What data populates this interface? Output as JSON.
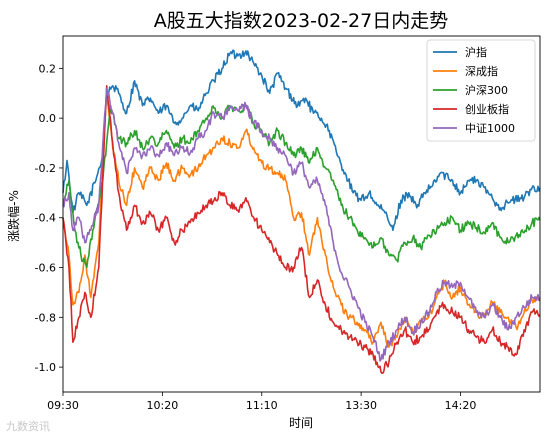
{
  "chart_data": {
    "type": "line",
    "title": "A股五大指数2023-02-27日内走势",
    "xlabel": "时间",
    "ylabel": "涨跌幅-%",
    "x_ticks": [
      "09:30",
      "10:20",
      "11:10",
      "13:30",
      "14:20"
    ],
    "x_tick_minutes": [
      0,
      50,
      100,
      150,
      200
    ],
    "x_range_minutes": [
      0,
      240
    ],
    "yticks": [
      0.2,
      0.0,
      -0.2,
      -0.4,
      -0.6,
      -0.8,
      -1.0
    ],
    "ylim": [
      -1.1,
      0.33
    ],
    "grid": false,
    "legend_position": "top-right",
    "series": [
      {
        "name": "沪指",
        "color": "#1f77b4",
        "anchors": [
          [
            0,
            -0.3
          ],
          [
            2,
            -0.17
          ],
          [
            5,
            -0.38
          ],
          [
            8,
            -0.3
          ],
          [
            12,
            -0.35
          ],
          [
            16,
            -0.26
          ],
          [
            20,
            -0.15
          ],
          [
            22,
            0.1
          ],
          [
            25,
            0.13
          ],
          [
            28,
            0.1
          ],
          [
            32,
            0.02
          ],
          [
            36,
            0.15
          ],
          [
            40,
            0.05
          ],
          [
            44,
            0.08
          ],
          [
            48,
            0.02
          ],
          [
            52,
            0.05
          ],
          [
            56,
            -0.02
          ],
          [
            60,
            0.0
          ],
          [
            64,
            0.05
          ],
          [
            68,
            0.03
          ],
          [
            72,
            0.1
          ],
          [
            76,
            0.15
          ],
          [
            80,
            0.2
          ],
          [
            84,
            0.26
          ],
          [
            88,
            0.25
          ],
          [
            92,
            0.27
          ],
          [
            96,
            0.22
          ],
          [
            100,
            0.17
          ],
          [
            104,
            0.1
          ],
          [
            108,
            0.18
          ],
          [
            112,
            0.12
          ],
          [
            118,
            0.05
          ],
          [
            122,
            0.08
          ],
          [
            126,
            0.02
          ],
          [
            130,
            0.0
          ],
          [
            134,
            -0.05
          ],
          [
            138,
            -0.15
          ],
          [
            142,
            -0.22
          ],
          [
            146,
            -0.3
          ],
          [
            150,
            -0.33
          ],
          [
            154,
            -0.3
          ],
          [
            158,
            -0.35
          ],
          [
            162,
            -0.38
          ],
          [
            166,
            -0.45
          ],
          [
            170,
            -0.33
          ],
          [
            174,
            -0.3
          ],
          [
            178,
            -0.36
          ],
          [
            182,
            -0.3
          ],
          [
            186,
            -0.27
          ],
          [
            190,
            -0.22
          ],
          [
            196,
            -0.25
          ],
          [
            200,
            -0.3
          ],
          [
            204,
            -0.25
          ],
          [
            208,
            -0.25
          ],
          [
            214,
            -0.3
          ],
          [
            220,
            -0.36
          ],
          [
            226,
            -0.33
          ],
          [
            232,
            -0.32
          ],
          [
            236,
            -0.28
          ],
          [
            240,
            -0.28
          ]
        ]
      },
      {
        "name": "深成指",
        "color": "#ff7f0e",
        "anchors": [
          [
            0,
            -0.4
          ],
          [
            3,
            -0.55
          ],
          [
            5,
            -0.75
          ],
          [
            8,
            -0.7
          ],
          [
            11,
            -0.55
          ],
          [
            14,
            -0.72
          ],
          [
            18,
            -0.5
          ],
          [
            22,
            0.1
          ],
          [
            25,
            -0.12
          ],
          [
            28,
            -0.25
          ],
          [
            32,
            -0.35
          ],
          [
            36,
            -0.2
          ],
          [
            40,
            -0.28
          ],
          [
            44,
            -0.2
          ],
          [
            48,
            -0.25
          ],
          [
            52,
            -0.18
          ],
          [
            56,
            -0.25
          ],
          [
            60,
            -0.2
          ],
          [
            64,
            -0.23
          ],
          [
            68,
            -0.2
          ],
          [
            72,
            -0.15
          ],
          [
            76,
            -0.12
          ],
          [
            80,
            -0.08
          ],
          [
            84,
            -0.1
          ],
          [
            88,
            -0.12
          ],
          [
            92,
            -0.05
          ],
          [
            96,
            -0.12
          ],
          [
            100,
            -0.18
          ],
          [
            104,
            -0.2
          ],
          [
            108,
            -0.22
          ],
          [
            112,
            -0.25
          ],
          [
            116,
            -0.4
          ],
          [
            120,
            -0.38
          ],
          [
            124,
            -0.55
          ],
          [
            128,
            -0.4
          ],
          [
            132,
            -0.55
          ],
          [
            136,
            -0.68
          ],
          [
            140,
            -0.75
          ],
          [
            144,
            -0.8
          ],
          [
            148,
            -0.82
          ],
          [
            152,
            -0.85
          ],
          [
            156,
            -0.9
          ],
          [
            160,
            -0.82
          ],
          [
            164,
            -0.92
          ],
          [
            168,
            -0.88
          ],
          [
            172,
            -0.8
          ],
          [
            176,
            -0.86
          ],
          [
            180,
            -0.82
          ],
          [
            184,
            -0.8
          ],
          [
            188,
            -0.72
          ],
          [
            192,
            -0.66
          ],
          [
            196,
            -0.72
          ],
          [
            200,
            -0.68
          ],
          [
            204,
            -0.75
          ],
          [
            208,
            -0.78
          ],
          [
            212,
            -0.8
          ],
          [
            216,
            -0.74
          ],
          [
            220,
            -0.78
          ],
          [
            224,
            -0.8
          ],
          [
            228,
            -0.84
          ],
          [
            232,
            -0.78
          ],
          [
            236,
            -0.73
          ],
          [
            240,
            -0.73
          ]
        ]
      },
      {
        "name": "沪深300",
        "color": "#2ca02c",
        "anchors": [
          [
            0,
            -0.35
          ],
          [
            3,
            -0.25
          ],
          [
            6,
            -0.45
          ],
          [
            9,
            -0.55
          ],
          [
            12,
            -0.6
          ],
          [
            15,
            -0.45
          ],
          [
            20,
            -0.25
          ],
          [
            24,
            0.05
          ],
          [
            28,
            -0.08
          ],
          [
            32,
            -0.1
          ],
          [
            36,
            -0.05
          ],
          [
            40,
            -0.12
          ],
          [
            44,
            -0.08
          ],
          [
            48,
            -0.1
          ],
          [
            52,
            -0.05
          ],
          [
            56,
            -0.12
          ],
          [
            60,
            -0.08
          ],
          [
            64,
            -0.1
          ],
          [
            68,
            -0.05
          ],
          [
            72,
            0.0
          ],
          [
            76,
            0.04
          ],
          [
            80,
            0.0
          ],
          [
            84,
            0.05
          ],
          [
            88,
            0.03
          ],
          [
            92,
            0.05
          ],
          [
            96,
            -0.02
          ],
          [
            100,
            -0.05
          ],
          [
            104,
            -0.1
          ],
          [
            108,
            -0.05
          ],
          [
            112,
            -0.1
          ],
          [
            116,
            -0.15
          ],
          [
            120,
            -0.12
          ],
          [
            124,
            -0.18
          ],
          [
            128,
            -0.12
          ],
          [
            132,
            -0.2
          ],
          [
            136,
            -0.25
          ],
          [
            140,
            -0.35
          ],
          [
            144,
            -0.4
          ],
          [
            148,
            -0.45
          ],
          [
            152,
            -0.48
          ],
          [
            156,
            -0.52
          ],
          [
            160,
            -0.48
          ],
          [
            164,
            -0.55
          ],
          [
            168,
            -0.57
          ],
          [
            172,
            -0.5
          ],
          [
            176,
            -0.48
          ],
          [
            180,
            -0.52
          ],
          [
            184,
            -0.47
          ],
          [
            188,
            -0.45
          ],
          [
            192,
            -0.42
          ],
          [
            196,
            -0.4
          ],
          [
            200,
            -0.45
          ],
          [
            204,
            -0.42
          ],
          [
            208,
            -0.44
          ],
          [
            212,
            -0.46
          ],
          [
            216,
            -0.42
          ],
          [
            220,
            -0.48
          ],
          [
            224,
            -0.5
          ],
          [
            228,
            -0.47
          ],
          [
            232,
            -0.46
          ],
          [
            236,
            -0.42
          ],
          [
            240,
            -0.41
          ]
        ]
      },
      {
        "name": "创业板指",
        "color": "#d62728",
        "anchors": [
          [
            0,
            -0.4
          ],
          [
            3,
            -0.6
          ],
          [
            5,
            -0.9
          ],
          [
            8,
            -0.8
          ],
          [
            11,
            -0.7
          ],
          [
            14,
            -0.8
          ],
          [
            18,
            -0.6
          ],
          [
            22,
            0.13
          ],
          [
            25,
            -0.1
          ],
          [
            28,
            -0.3
          ],
          [
            32,
            -0.45
          ],
          [
            36,
            -0.35
          ],
          [
            40,
            -0.42
          ],
          [
            44,
            -0.38
          ],
          [
            48,
            -0.45
          ],
          [
            52,
            -0.4
          ],
          [
            56,
            -0.5
          ],
          [
            60,
            -0.45
          ],
          [
            64,
            -0.42
          ],
          [
            68,
            -0.38
          ],
          [
            72,
            -0.35
          ],
          [
            76,
            -0.33
          ],
          [
            80,
            -0.3
          ],
          [
            84,
            -0.35
          ],
          [
            88,
            -0.37
          ],
          [
            92,
            -0.32
          ],
          [
            96,
            -0.4
          ],
          [
            100,
            -0.45
          ],
          [
            104,
            -0.5
          ],
          [
            108,
            -0.55
          ],
          [
            112,
            -0.6
          ],
          [
            116,
            -0.6
          ],
          [
            120,
            -0.52
          ],
          [
            124,
            -0.72
          ],
          [
            128,
            -0.65
          ],
          [
            132,
            -0.75
          ],
          [
            136,
            -0.82
          ],
          [
            140,
            -0.85
          ],
          [
            144,
            -0.88
          ],
          [
            148,
            -0.9
          ],
          [
            152,
            -0.92
          ],
          [
            156,
            -0.95
          ],
          [
            160,
            -1.02
          ],
          [
            164,
            -0.98
          ],
          [
            168,
            -0.9
          ],
          [
            172,
            -0.85
          ],
          [
            176,
            -0.9
          ],
          [
            180,
            -0.88
          ],
          [
            184,
            -0.85
          ],
          [
            188,
            -0.78
          ],
          [
            192,
            -0.75
          ],
          [
            196,
            -0.78
          ],
          [
            200,
            -0.8
          ],
          [
            204,
            -0.85
          ],
          [
            208,
            -0.88
          ],
          [
            212,
            -0.9
          ],
          [
            216,
            -0.85
          ],
          [
            220,
            -0.9
          ],
          [
            224,
            -0.92
          ],
          [
            228,
            -0.95
          ],
          [
            232,
            -0.85
          ],
          [
            236,
            -0.78
          ],
          [
            240,
            -0.79
          ]
        ]
      },
      {
        "name": "中证1000",
        "color": "#9467bd",
        "anchors": [
          [
            0,
            -0.35
          ],
          [
            3,
            -0.3
          ],
          [
            5,
            -0.45
          ],
          [
            8,
            -0.4
          ],
          [
            11,
            -0.5
          ],
          [
            14,
            -0.45
          ],
          [
            18,
            -0.35
          ],
          [
            22,
            0.12
          ],
          [
            25,
            0.02
          ],
          [
            28,
            -0.1
          ],
          [
            32,
            -0.22
          ],
          [
            36,
            -0.12
          ],
          [
            40,
            -0.15
          ],
          [
            44,
            -0.12
          ],
          [
            48,
            -0.15
          ],
          [
            52,
            -0.1
          ],
          [
            56,
            -0.15
          ],
          [
            60,
            -0.12
          ],
          [
            64,
            -0.14
          ],
          [
            68,
            -0.08
          ],
          [
            72,
            -0.05
          ],
          [
            76,
            0.02
          ],
          [
            80,
            0.0
          ],
          [
            84,
            0.05
          ],
          [
            88,
            0.03
          ],
          [
            92,
            0.05
          ],
          [
            96,
            -0.02
          ],
          [
            100,
            -0.05
          ],
          [
            104,
            -0.08
          ],
          [
            108,
            -0.12
          ],
          [
            112,
            -0.15
          ],
          [
            116,
            -0.22
          ],
          [
            120,
            -0.18
          ],
          [
            124,
            -0.28
          ],
          [
            128,
            -0.25
          ],
          [
            132,
            -0.35
          ],
          [
            136,
            -0.5
          ],
          [
            140,
            -0.62
          ],
          [
            144,
            -0.68
          ],
          [
            148,
            -0.75
          ],
          [
            152,
            -0.82
          ],
          [
            156,
            -0.88
          ],
          [
            160,
            -0.97
          ],
          [
            164,
            -0.9
          ],
          [
            168,
            -0.85
          ],
          [
            172,
            -0.8
          ],
          [
            176,
            -0.86
          ],
          [
            180,
            -0.82
          ],
          [
            184,
            -0.78
          ],
          [
            188,
            -0.7
          ],
          [
            192,
            -0.66
          ],
          [
            196,
            -0.68
          ],
          [
            200,
            -0.66
          ],
          [
            204,
            -0.72
          ],
          [
            208,
            -0.78
          ],
          [
            212,
            -0.8
          ],
          [
            216,
            -0.75
          ],
          [
            220,
            -0.8
          ],
          [
            224,
            -0.85
          ],
          [
            228,
            -0.8
          ],
          [
            232,
            -0.76
          ],
          [
            236,
            -0.72
          ],
          [
            240,
            -0.72
          ]
        ]
      }
    ]
  },
  "watermark": "九数资讯"
}
